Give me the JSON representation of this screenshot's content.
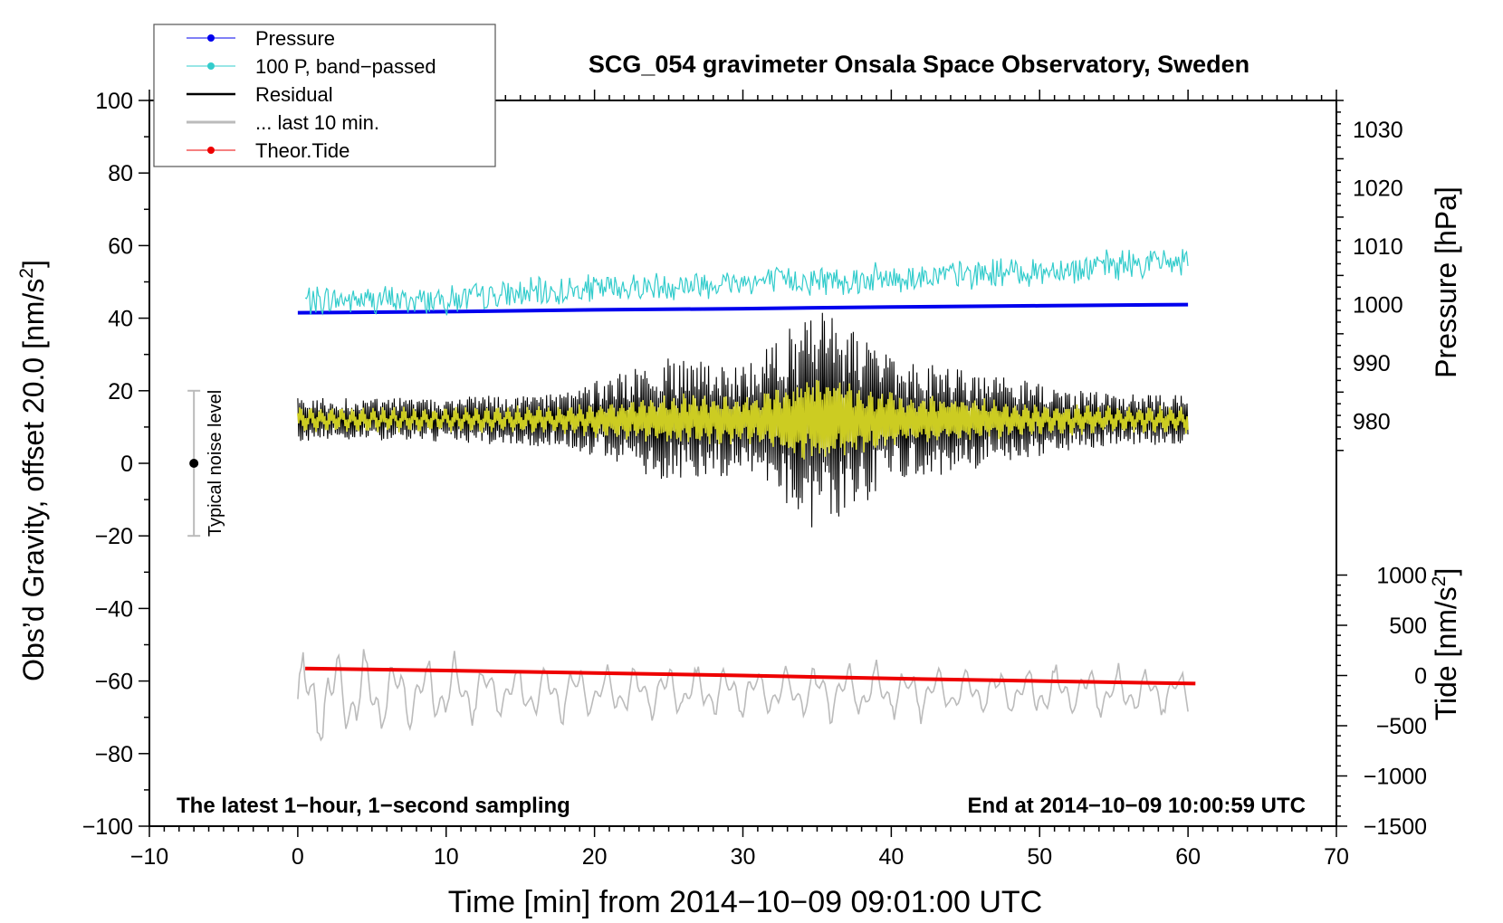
{
  "chart_data": {
    "type": "line",
    "title": "SCG_054 gravimeter Onsala Space Observatory, Sweden",
    "xlabel": "Time [min] from 2014−10−09 09:01:00 UTC",
    "ylabel_left_main": "Obs’d Gravity, offset 20.0 [nm/s",
    "ylabel_left_sup": "2",
    "ylabel_left_end": "]",
    "ylabel_right_top": "Pressure [hPa]",
    "ylabel_right_bottom_main": "Tide [nm/s",
    "ylabel_right_bottom_sup": "2",
    "ylabel_right_bottom_end": "]",
    "xlim": [
      -10,
      70
    ],
    "ylim_left": [
      -100,
      100
    ],
    "ylim_pressure": [
      970,
      1035
    ],
    "ylim_tide": [
      -1500,
      1500
    ],
    "x_ticks": [
      -10,
      0,
      10,
      20,
      30,
      40,
      50,
      60,
      70
    ],
    "x_tick_labels": [
      "−10",
      "0",
      "10",
      "20",
      "30",
      "40",
      "50",
      "60",
      "70"
    ],
    "y_left_ticks": [
      -100,
      -80,
      -60,
      -40,
      -20,
      0,
      20,
      40,
      60,
      80,
      100
    ],
    "y_left_tick_labels": [
      "−100",
      "−80",
      "−60",
      "−40",
      "−20",
      "0",
      "20",
      "40",
      "60",
      "80",
      "100"
    ],
    "pressure_ticks": [
      980,
      990,
      1000,
      1010,
      1020,
      1030
    ],
    "pressure_tick_labels": [
      "980",
      "990",
      "1000",
      "1010",
      "1020",
      "1030"
    ],
    "tide_ticks": [
      -1500,
      -1000,
      -500,
      0,
      500,
      1000
    ],
    "tide_tick_labels": [
      "−1500",
      "−1000",
      "−500",
      "0",
      "500",
      "1000"
    ],
    "legend": [
      {
        "label": "Pressure",
        "color": "#0000ee",
        "marker": true
      },
      {
        "label": "100 P, band−passed",
        "color": "#33cccc",
        "marker": true
      },
      {
        "label": "Residual",
        "color": "#000000",
        "marker": false
      },
      {
        "label": "... last 10 min.",
        "color": "#bbbbbb",
        "marker": false
      },
      {
        "label": "Theor.Tide",
        "color": "#ee0000",
        "marker": true
      }
    ],
    "legend_position": "top-left",
    "noise_bar": {
      "label": "Typical noise level",
      "x": -7,
      "center": 0,
      "low": -20,
      "high": 20
    },
    "annotation_left": "The latest 1−hour, 1−second sampling",
    "annotation_right": "End at 2014−10−09 10:00:59 UTC",
    "series": [
      {
        "name": "Pressure",
        "axis": "pressure",
        "color": "#0000ee",
        "x": [
          0,
          10,
          20,
          30,
          40,
          50,
          60
        ],
        "values": [
          998.6,
          998.8,
          999.1,
          999.3,
          999.6,
          999.8,
          1000.0
        ]
      },
      {
        "name": "100 P, band−passed",
        "axis": "left",
        "color": "#33cccc",
        "x": [
          0,
          10,
          20,
          30,
          40,
          50,
          60
        ],
        "values": [
          45,
          45,
          48,
          50,
          51,
          53,
          56
        ],
        "noise_amplitude": 4
      },
      {
        "name": "Residual",
        "axis": "left",
        "color": "#000000",
        "x": [
          0,
          10,
          18,
          25,
          30,
          34,
          35,
          36,
          37,
          40,
          45,
          50,
          55,
          60
        ],
        "values": [
          12,
          12,
          12,
          12,
          12,
          12,
          12,
          12,
          12,
          12,
          12,
          12,
          12,
          12
        ],
        "envelope": [
          6,
          6,
          8,
          17,
          15,
          28,
          32,
          30,
          26,
          18,
          14,
          10,
          7,
          7
        ]
      },
      {
        "name": "... last 10 min.",
        "axis": "left",
        "color": "#bbbbbb",
        "x": [
          0,
          5,
          10,
          20,
          30,
          40,
          50,
          60
        ],
        "values": [
          -65,
          -64,
          -63,
          -63,
          -63,
          -63,
          -63,
          -63
        ],
        "envelope": [
          14,
          12,
          9,
          7,
          7,
          7,
          7,
          6
        ]
      },
      {
        "name": "Theor.Tide",
        "axis": "tide",
        "color": "#ee0000",
        "x": [
          0.5,
          10,
          20,
          30,
          40,
          50,
          60.5
        ],
        "values": [
          70,
          50,
          25,
          0,
          -30,
          -55,
          -80
        ]
      }
    ]
  }
}
